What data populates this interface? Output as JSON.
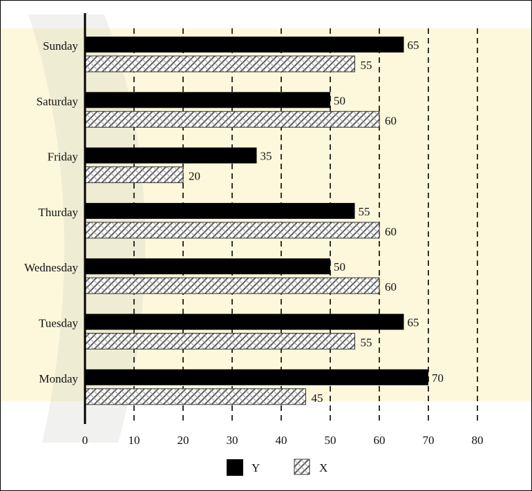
{
  "chart_data": {
    "type": "bar",
    "orientation": "horizontal",
    "categories": [
      "Sunday",
      "Saturday",
      "Friday",
      "Thurday",
      "Wednesday",
      "Tuesday",
      "Monday"
    ],
    "series": [
      {
        "name": "Y",
        "values": [
          65,
          50,
          35,
          55,
          50,
          65,
          70
        ],
        "fill": "#000000"
      },
      {
        "name": "X",
        "values": [
          55,
          60,
          20,
          60,
          60,
          55,
          45
        ],
        "fill": "hatched"
      }
    ],
    "xlim": [
      0,
      80
    ],
    "xticks": [
      "0",
      "10",
      "20",
      "30",
      "40",
      "50",
      "60",
      "70",
      "80"
    ],
    "grid": "vertical dashed",
    "legend": "bottom",
    "title": "",
    "xlabel": "",
    "ylabel": ""
  },
  "colors": {
    "y_bar": "#000000",
    "x_bar_hatch": "#555555",
    "background_band": "#f7df59",
    "background_shape": "#c9c6c1"
  }
}
